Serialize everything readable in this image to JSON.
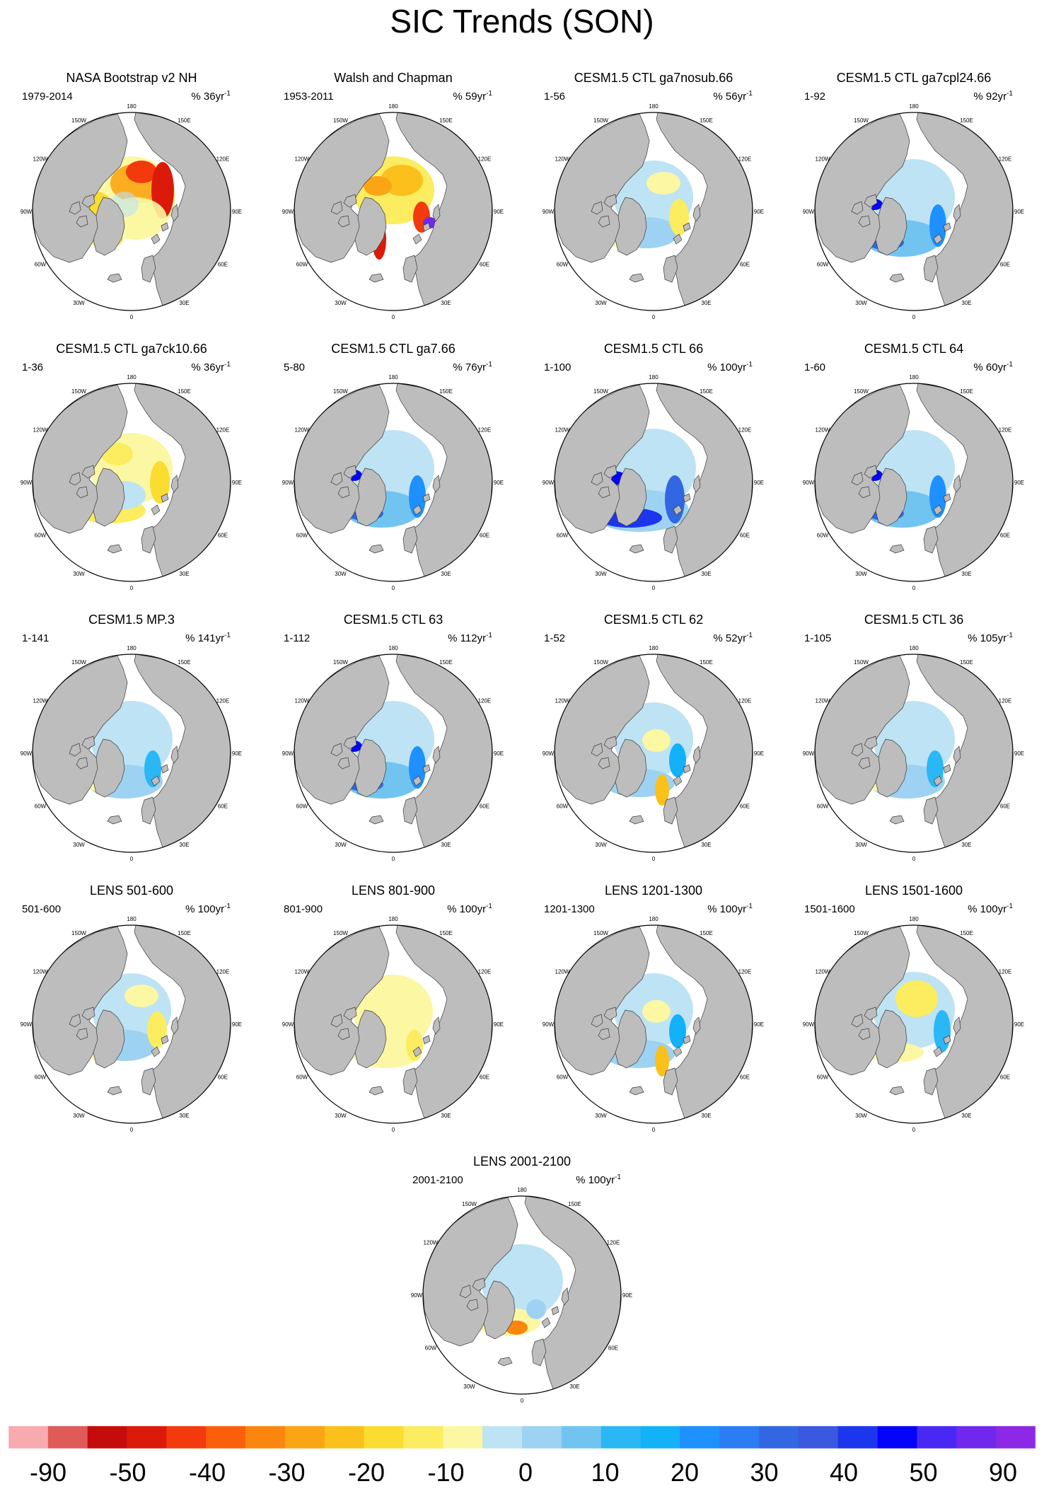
{
  "title": "SIC Trends (SON)",
  "longitude_labels": [
    "180",
    "150E",
    "120E",
    "90E",
    "60E",
    "30E",
    "0",
    "30W",
    "60W",
    "90W",
    "120W",
    "150W"
  ],
  "colors": {
    "land": "#bdbdbd",
    "ocean": "#ffffff",
    "coast": "#3a3a3a"
  },
  "chart_data": {
    "type": "heatmap",
    "title": "SIC Trends (SON)",
    "projection": "north polar stereographic",
    "units": "%",
    "panels": [
      {
        "title": "NASA Bootstrap v2 NH",
        "period": "1979-2014",
        "scale": "% 36yr",
        "scale_exp": "-1",
        "scheme": "obs1"
      },
      {
        "title": "Walsh and Chapman",
        "period": "1953-2011",
        "scale": "% 59yr",
        "scale_exp": "-1",
        "scheme": "obs2"
      },
      {
        "title": "CESM1.5 CTL ga7nosub.66",
        "period": "1-56",
        "scale": "% 56yr",
        "scale_exp": "-1",
        "scheme": "mixed_light"
      },
      {
        "title": "CESM1.5 CTL ga7cpl24.66",
        "period": "1-92",
        "scale": "% 92yr",
        "scale_exp": "-1",
        "scheme": "blue_mid"
      },
      {
        "title": "CESM1.5 CTL ga7ck10.66",
        "period": "1-36",
        "scale": "% 36yr",
        "scale_exp": "-1",
        "scheme": "orange_light"
      },
      {
        "title": "CESM1.5 CTL ga7.66",
        "period": "5-80",
        "scale": "% 76yr",
        "scale_exp": "-1",
        "scheme": "blue_mid"
      },
      {
        "title": "CESM1.5 CTL 66",
        "period": "1-100",
        "scale": "% 100yr",
        "scale_exp": "-1",
        "scheme": "blue_strong"
      },
      {
        "title": "CESM1.5 CTL 64",
        "period": "1-60",
        "scale": "% 60yr",
        "scale_exp": "-1",
        "scheme": "blue_mid"
      },
      {
        "title": "CESM1.5 MP.3",
        "period": "1-141",
        "scale": "% 141yr",
        "scale_exp": "-1",
        "scheme": "blue_light"
      },
      {
        "title": "CESM1.5 CTL 63",
        "period": "1-112",
        "scale": "% 112yr",
        "scale_exp": "-1",
        "scheme": "blue_mid"
      },
      {
        "title": "CESM1.5 CTL 62",
        "period": "1-52",
        "scale": "% 52yr",
        "scale_exp": "-1",
        "scheme": "mixed_blue"
      },
      {
        "title": "CESM1.5 CTL 36",
        "period": "1-105",
        "scale": "% 105yr",
        "scale_exp": "-1",
        "scheme": "blue_light"
      },
      {
        "title": "LENS 501-600",
        "period": "501-600",
        "scale": "% 100yr",
        "scale_exp": "-1",
        "scheme": "mixed_light"
      },
      {
        "title": "LENS 801-900",
        "period": "801-900",
        "scale": "% 100yr",
        "scale_exp": "-1",
        "scheme": "yellow"
      },
      {
        "title": "LENS 1201-1300",
        "period": "1201-1300",
        "scale": "% 100yr",
        "scale_exp": "-1",
        "scheme": "mixed_blue"
      },
      {
        "title": "LENS 1501-1600",
        "period": "1501-1600",
        "scale": "% 100yr",
        "scale_exp": "-1",
        "scheme": "yellow_blue"
      },
      {
        "title": "LENS 2001-2100",
        "period": "2001-2100",
        "scale": "% 100yr",
        "scale_exp": "-1",
        "scheme": "mixed_orange"
      }
    ],
    "colorbar": {
      "labels": [
        "-90",
        "-50",
        "-40",
        "-30",
        "-20",
        "-10",
        "0",
        "10",
        "20",
        "30",
        "40",
        "50",
        "90"
      ],
      "colors": [
        "#f7aab0",
        "#e05a5a",
        "#c40c0c",
        "#dc1a0a",
        "#f23a0c",
        "#fb5f0c",
        "#fb850e",
        "#fba414",
        "#fbc01c",
        "#fbdc30",
        "#fbec60",
        "#fcf7a2",
        "#bde3f5",
        "#9dd2f2",
        "#72c4f0",
        "#2bb7f5",
        "#12b1f8",
        "#1e90ff",
        "#2c7cf4",
        "#3266e2",
        "#3a58e0",
        "#1c36ee",
        "#0404fb",
        "#4a28f4",
        "#7028ec",
        "#8c28e6"
      ]
    }
  }
}
